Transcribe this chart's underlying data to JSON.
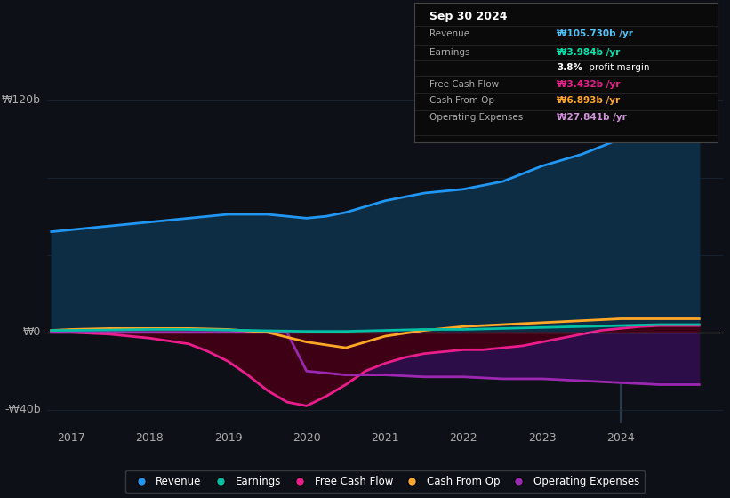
{
  "background_color": "#0d1117",
  "plot_bg_color": "#0d1117",
  "ylabel_120": "₩120b",
  "ylabel_0": "₩0",
  "ylabel_neg40": "-₩40b",
  "x_ticks": [
    2017,
    2018,
    2019,
    2020,
    2021,
    2022,
    2023,
    2024
  ],
  "xlim": [
    2016.7,
    2025.3
  ],
  "ylim": [
    -47,
    128
  ],
  "revenue": {
    "x": [
      2016.75,
      2017.0,
      2017.25,
      2017.5,
      2017.75,
      2018.0,
      2018.25,
      2018.5,
      2018.75,
      2019.0,
      2019.25,
      2019.5,
      2019.75,
      2020.0,
      2020.25,
      2020.5,
      2020.75,
      2021.0,
      2021.25,
      2021.5,
      2021.75,
      2022.0,
      2022.25,
      2022.5,
      2022.75,
      2023.0,
      2023.25,
      2023.5,
      2023.75,
      2024.0,
      2024.25,
      2024.5,
      2024.75,
      2025.0
    ],
    "y": [
      52,
      53,
      54,
      55,
      56,
      57,
      58,
      59,
      60,
      61,
      61,
      61,
      60,
      59,
      60,
      62,
      65,
      68,
      70,
      72,
      73,
      74,
      76,
      78,
      82,
      86,
      89,
      92,
      96,
      100,
      103,
      106,
      107,
      107
    ],
    "color": "#2196f3",
    "fill_color": "#0d2d45",
    "label": "Revenue"
  },
  "earnings": {
    "x": [
      2016.75,
      2017.0,
      2017.5,
      2018.0,
      2018.5,
      2019.0,
      2019.5,
      2020.0,
      2020.5,
      2021.0,
      2021.5,
      2022.0,
      2022.5,
      2023.0,
      2023.5,
      2024.0,
      2024.5,
      2025.0
    ],
    "y": [
      1.0,
      1.0,
      1.2,
      1.5,
      1.5,
      1.2,
      0.8,
      0.5,
      0.5,
      1.0,
      1.5,
      1.5,
      2.0,
      2.5,
      3.0,
      3.5,
      4.0,
      4.0
    ],
    "color": "#00bfa5",
    "label": "Earnings"
  },
  "free_cash_flow": {
    "x": [
      2016.75,
      2017.0,
      2017.5,
      2018.0,
      2018.5,
      2018.75,
      2019.0,
      2019.25,
      2019.5,
      2019.75,
      2020.0,
      2020.25,
      2020.5,
      2020.75,
      2021.0,
      2021.25,
      2021.5,
      2021.75,
      2022.0,
      2022.25,
      2022.5,
      2022.75,
      2023.0,
      2023.25,
      2023.5,
      2023.75,
      2024.0,
      2024.25,
      2024.5,
      2025.0
    ],
    "y": [
      0,
      0,
      -1,
      -3,
      -6,
      -10,
      -15,
      -22,
      -30,
      -36,
      -38,
      -33,
      -27,
      -20,
      -16,
      -13,
      -11,
      -10,
      -9,
      -9,
      -8,
      -7,
      -5,
      -3,
      -1,
      1,
      2,
      3,
      3.5,
      3.5
    ],
    "color": "#e91e8c",
    "fill_color": "#3d0015",
    "label": "Free Cash Flow"
  },
  "cash_from_op": {
    "x": [
      2016.75,
      2017.0,
      2017.5,
      2018.0,
      2018.5,
      2019.0,
      2019.5,
      2020.0,
      2020.5,
      2021.0,
      2021.5,
      2022.0,
      2022.5,
      2023.0,
      2023.5,
      2024.0,
      2024.5,
      2025.0
    ],
    "y": [
      1,
      1.5,
      2,
      2,
      2,
      1.5,
      0,
      -5,
      -8,
      -2,
      1,
      3,
      4,
      5,
      6,
      7,
      7,
      7
    ],
    "color": "#ffa726",
    "label": "Cash From Op"
  },
  "operating_expenses": {
    "x": [
      2016.75,
      2017.5,
      2018.0,
      2018.5,
      2019.0,
      2019.5,
      2019.75,
      2020.0,
      2020.25,
      2020.5,
      2020.75,
      2021.0,
      2021.5,
      2022.0,
      2022.5,
      2023.0,
      2023.5,
      2024.0,
      2024.5,
      2025.0
    ],
    "y": [
      0,
      0,
      0,
      0,
      0,
      0,
      0,
      -20,
      -21,
      -22,
      -22,
      -22,
      -23,
      -23,
      -24,
      -24,
      -25,
      -26,
      -27,
      -27
    ],
    "color": "#9c27b0",
    "fill_color": "#2d0d47",
    "label": "Operating Expenses"
  },
  "tooltip": {
    "date": "Sep 30 2024",
    "revenue_val": "₩105.730b",
    "earnings_val": "₩3.984b",
    "profit_margin": "3.8%",
    "fcf_val": "₩3.432b",
    "cashfromop_val": "₩6.893b",
    "opex_val": "₩27.841b"
  },
  "legend_items": [
    {
      "label": "Revenue",
      "color": "#2196f3"
    },
    {
      "label": "Earnings",
      "color": "#00bfa5"
    },
    {
      "label": "Free Cash Flow",
      "color": "#e91e8c"
    },
    {
      "label": "Cash From Op",
      "color": "#ffa726"
    },
    {
      "label": "Operating Expenses",
      "color": "#9c27b0"
    }
  ]
}
